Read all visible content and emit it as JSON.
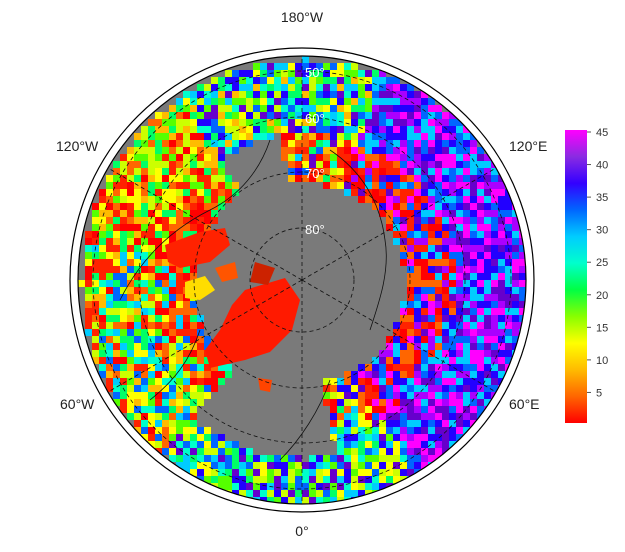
{
  "map": {
    "projection": "north-polar-stereographic",
    "ocean_color": "#7a7a7a",
    "land_mask_color": "#7a7a7a",
    "longitude_labels": [
      {
        "id": "lon-180w",
        "text": "180°W",
        "angle": 180
      },
      {
        "id": "lon-120e",
        "text": "120°E",
        "angle": 120
      },
      {
        "id": "lon-60e",
        "text": "60°E",
        "angle": 60
      },
      {
        "id": "lon-0",
        "text": "0°",
        "angle": 0
      },
      {
        "id": "lon-60w",
        "text": "60°W",
        "angle": -60
      },
      {
        "id": "lon-120w",
        "text": "120°W",
        "angle": -120
      }
    ],
    "latitude_labels": [
      {
        "id": "lat-50",
        "text": "50°",
        "lat": 50
      },
      {
        "id": "lat-60",
        "text": "60°",
        "lat": 60
      },
      {
        "id": "lat-70",
        "text": "70°",
        "lat": 70
      },
      {
        "id": "lat-80",
        "text": "80°",
        "lat": 80
      }
    ],
    "latitude_circles": [
      50,
      60,
      70,
      80
    ],
    "meridians": [
      0,
      60,
      120,
      180,
      240,
      300
    ]
  },
  "colorbar": {
    "min": 0,
    "max": 45,
    "ticks": [
      "45",
      "40",
      "35",
      "30",
      "25",
      "20",
      "15",
      "10",
      "5"
    ],
    "colors": [
      "#ff00ff",
      "#8a2be2",
      "#3300ff",
      "#0066ff",
      "#00ccff",
      "#00ffcc",
      "#00ff44",
      "#88ff00",
      "#ffff00",
      "#ffbb00",
      "#ff6600",
      "#ff0000"
    ]
  }
}
